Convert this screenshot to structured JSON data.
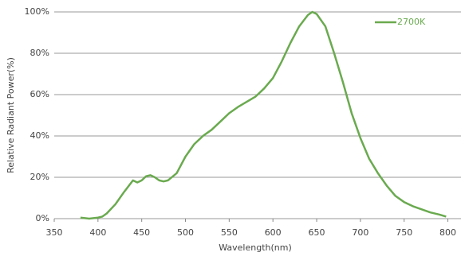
{
  "chart_data": {
    "type": "line",
    "x_label": "Wavelength(nm)",
    "y_label": "Relative Radiant Power(%)",
    "x": [
      380,
      390,
      400,
      405,
      410,
      420,
      430,
      440,
      445,
      450,
      455,
      460,
      465,
      470,
      475,
      480,
      490,
      500,
      510,
      520,
      530,
      540,
      550,
      560,
      570,
      580,
      590,
      600,
      610,
      620,
      630,
      640,
      645,
      650,
      660,
      670,
      680,
      690,
      700,
      710,
      720,
      730,
      740,
      750,
      760,
      770,
      780,
      790,
      798
    ],
    "series": [
      {
        "name": "2700K",
        "color": "#6aaa4f",
        "values": [
          0.5,
          0,
          0.5,
          1,
          2.5,
          7,
          13,
          18.5,
          17.5,
          18.5,
          20.5,
          21,
          20,
          18.5,
          18,
          18.5,
          22,
          30,
          36,
          40,
          43,
          47,
          51,
          54,
          56.5,
          59,
          63,
          68,
          76,
          85,
          93,
          98.5,
          100,
          99,
          93,
          80,
          66,
          51,
          39,
          29,
          22,
          16,
          11,
          8,
          6,
          4.5,
          3,
          2,
          1
        ]
      }
    ],
    "xlim": [
      350,
      815
    ],
    "xticks": [
      350,
      400,
      450,
      500,
      550,
      600,
      650,
      700,
      750,
      800
    ],
    "ylim": [
      0,
      100
    ],
    "yticks": [
      {
        "value": 0,
        "label": "0%"
      },
      {
        "value": 20,
        "label": "20%"
      },
      {
        "value": 40,
        "label": "40%"
      },
      {
        "value": 60,
        "label": "60%"
      },
      {
        "value": 80,
        "label": "80%"
      },
      {
        "value": 100,
        "label": "100%"
      }
    ],
    "grid": true,
    "legend": "upper right"
  }
}
